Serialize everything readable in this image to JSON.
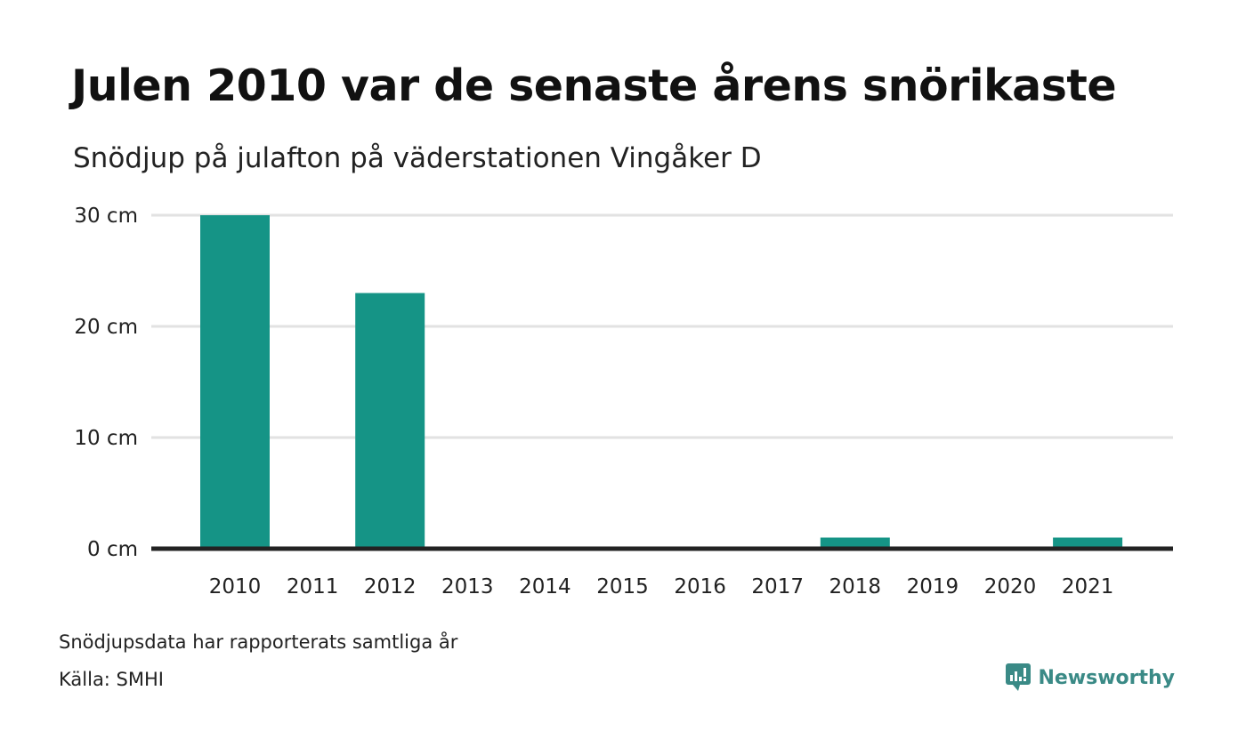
{
  "title": "Julen 2010 var de senaste årens snörikaste",
  "subtitle": "Snödjup på julafton på väderstationen Vingåker D",
  "notes": {
    "line1": "Snödjupsdata har rapporterats samtliga år",
    "line2": "Källa: SMHI"
  },
  "logo": {
    "text": "Newsworthy",
    "icon": "chart-bubble-icon"
  },
  "colors": {
    "bar": "#159486",
    "grid": "#e2e2e2",
    "axis": "#222222",
    "logo": "#3a8a86"
  },
  "chart_data": {
    "type": "bar",
    "categories": [
      "2010",
      "2011",
      "2012",
      "2013",
      "2014",
      "2015",
      "2016",
      "2017",
      "2018",
      "2019",
      "2020",
      "2021"
    ],
    "values": [
      30,
      0,
      23,
      0,
      0,
      0,
      0,
      0,
      1,
      0,
      0,
      1
    ],
    "ylim": [
      0,
      30
    ],
    "yticks": [
      0,
      10,
      20,
      30
    ],
    "ytick_labels": [
      "0 cm",
      "10 cm",
      "20 cm",
      "30 cm"
    ],
    "grid": true
  }
}
